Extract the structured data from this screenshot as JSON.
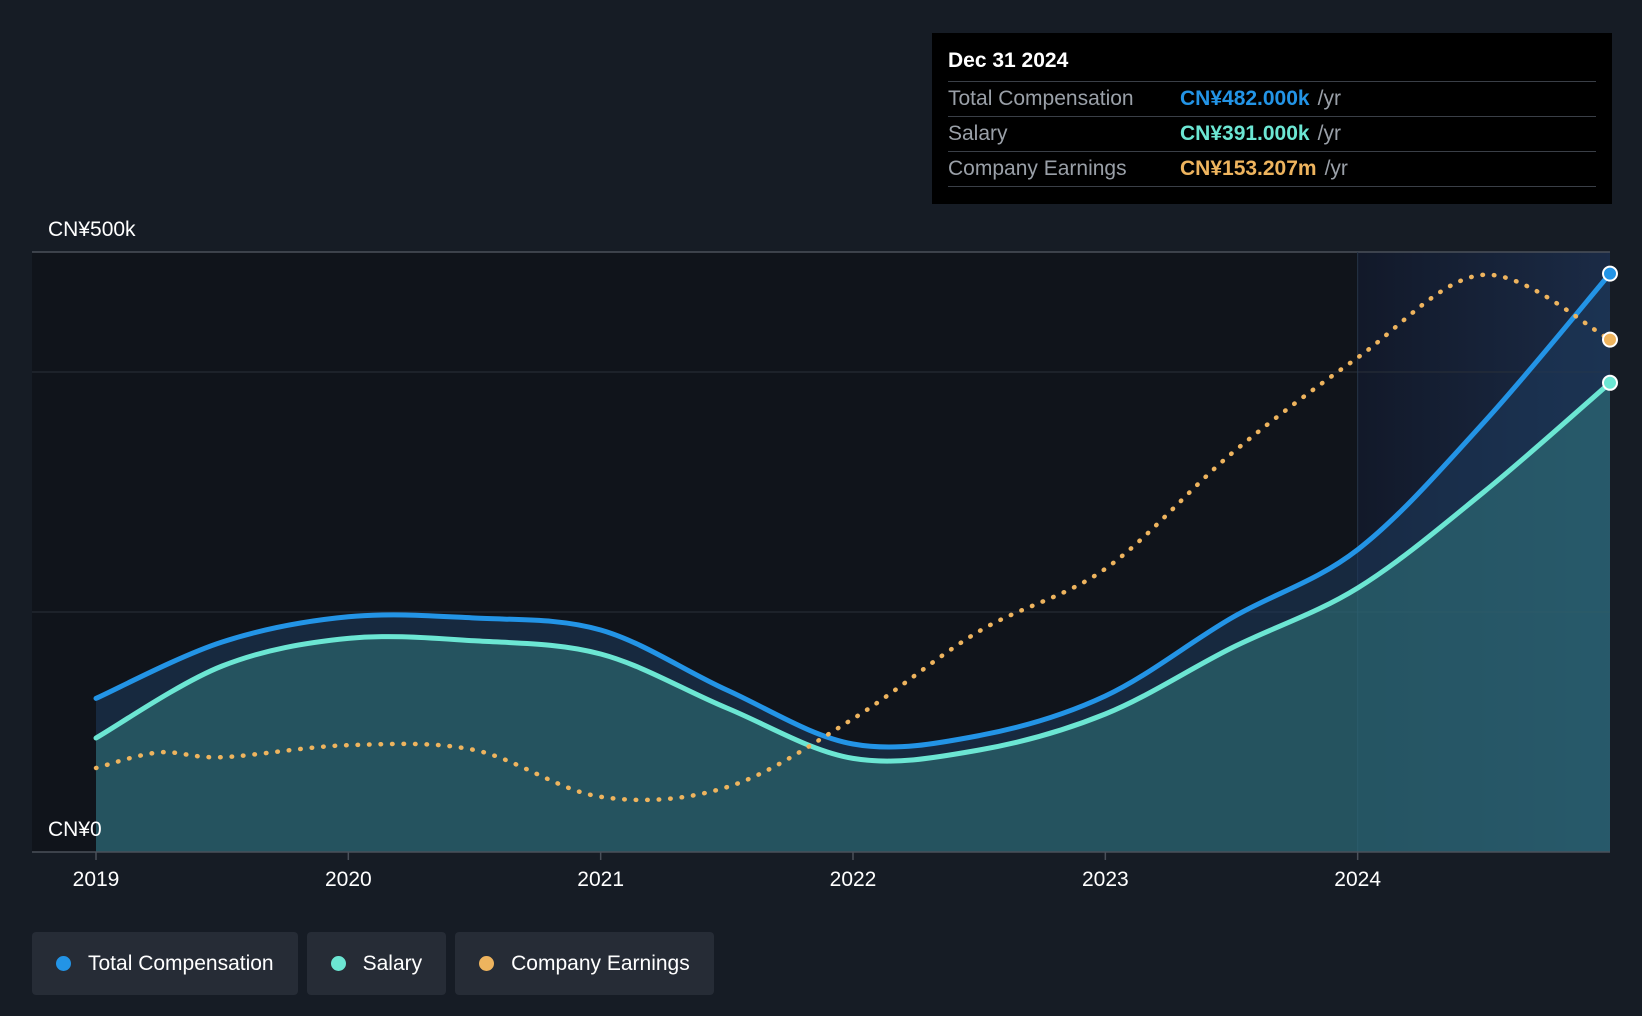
{
  "tooltip": {
    "date": "Dec 31 2024",
    "rows": [
      {
        "label": "Total Compensation",
        "value": "CN¥482.000k",
        "unit": "/yr",
        "color": "#2394e6"
      },
      {
        "label": "Salary",
        "value": "CN¥391.000k",
        "unit": "/yr",
        "color": "#6ce6d3"
      },
      {
        "label": "Company Earnings",
        "value": "CN¥153.207m",
        "unit": "/yr",
        "color": "#eeb45e"
      }
    ]
  },
  "legend": [
    {
      "label": "Total Compensation",
      "color": "#2394e6"
    },
    {
      "label": "Salary",
      "color": "#6ce6d3"
    },
    {
      "label": "Company Earnings",
      "color": "#eeb45e"
    }
  ],
  "chart_data": {
    "type": "area",
    "y_tick_labels": [
      "CN¥0",
      "CN¥500k"
    ],
    "ylim": [
      0,
      500
    ],
    "y_unit": "CN¥ thousands per year",
    "x_tick_labels": [
      "2019",
      "2020",
      "2021",
      "2022",
      "2023",
      "2024"
    ],
    "xlim": [
      2019,
      2025
    ],
    "grid": true,
    "legend_position": "bottom-left",
    "highlight_from": 2024,
    "series": [
      {
        "name": "Total Compensation",
        "color": "#2394e6",
        "style": "solid-area",
        "points": [
          [
            2019,
            128
          ],
          [
            2019.5,
            175
          ],
          [
            2020,
            196
          ],
          [
            2020.5,
            195
          ],
          [
            2021,
            185
          ],
          [
            2021.5,
            135
          ],
          [
            2022,
            90
          ],
          [
            2022.5,
            97
          ],
          [
            2023,
            130
          ],
          [
            2023.5,
            195
          ],
          [
            2024,
            252
          ],
          [
            2024.5,
            358
          ],
          [
            2025,
            482
          ]
        ]
      },
      {
        "name": "Salary",
        "color": "#6ce6d3",
        "style": "solid-area",
        "points": [
          [
            2019,
            95
          ],
          [
            2019.5,
            155
          ],
          [
            2020,
            178
          ],
          [
            2020.5,
            176
          ],
          [
            2021,
            165
          ],
          [
            2021.5,
            120
          ],
          [
            2022,
            78
          ],
          [
            2022.5,
            85
          ],
          [
            2023,
            115
          ],
          [
            2023.5,
            170
          ],
          [
            2024,
            220
          ],
          [
            2024.5,
            300
          ],
          [
            2025,
            391
          ]
        ]
      },
      {
        "name": "Company Earnings",
        "color": "#eeb45e",
        "style": "dotted",
        "scale_note": "relative scale, final value CN¥153.207m",
        "points": [
          [
            2019,
            70
          ],
          [
            2019.25,
            83
          ],
          [
            2019.5,
            79
          ],
          [
            2020,
            89
          ],
          [
            2020.5,
            85
          ],
          [
            2021,
            46
          ],
          [
            2021.5,
            54
          ],
          [
            2022,
            111
          ],
          [
            2022.5,
            184
          ],
          [
            2023,
            236
          ],
          [
            2023.5,
            332
          ],
          [
            2024,
            412
          ],
          [
            2024.5,
            481
          ],
          [
            2025,
            427
          ]
        ]
      }
    ]
  }
}
